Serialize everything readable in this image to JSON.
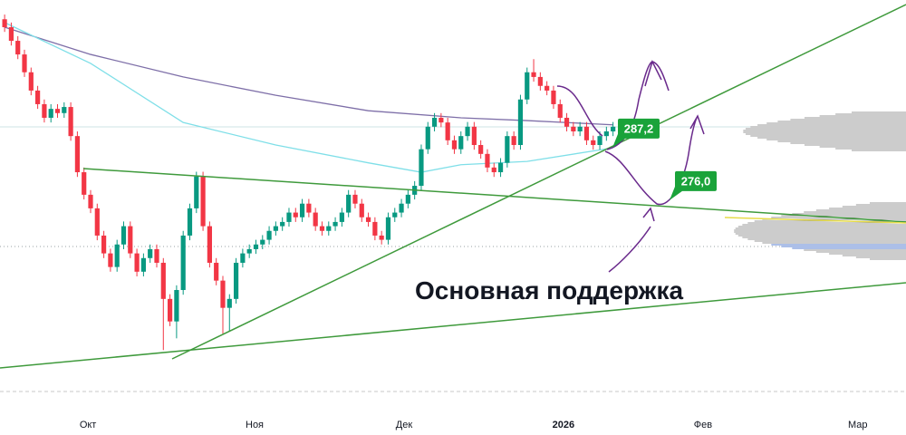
{
  "chart_data": {
    "type": "candlestick",
    "up_color": "#089981",
    "down_color": "#f23645",
    "xlim": [
      -0.7,
      136.3
    ],
    "ylim": [
      221.9,
      314.6
    ],
    "xticks": [
      {
        "value": 12.6,
        "label": "Окт"
      },
      {
        "value": 37.8,
        "label": "Ноя"
      },
      {
        "value": 60.4,
        "label": "Дек"
      },
      {
        "value": 84.5,
        "label": "2026"
      },
      {
        "value": 105.6,
        "label": "Фев"
      },
      {
        "value": 129.0,
        "label": "Мар"
      }
    ],
    "open": [
      310.5,
      308.8,
      305.9,
      303.0,
      299.2,
      295.3,
      292.4,
      289.5,
      291.4,
      290.5,
      291.8,
      285.6,
      277.9,
      273.1,
      270.2,
      264.4,
      260.6,
      257.7,
      262.5,
      266.4,
      260.6,
      256.7,
      259.6,
      261.5,
      258.6,
      250.9,
      246.1,
      252.8,
      264.4,
      270.2,
      277.0,
      266.4,
      258.6,
      254.8,
      249.0,
      250.9,
      258.6,
      260.6,
      261.5,
      262.5,
      263.5,
      265.4,
      266.4,
      267.3,
      269.3,
      268.3,
      271.2,
      269.3,
      266.4,
      265.4,
      266.4,
      267.3,
      269.3,
      273.1,
      271.2,
      268.3,
      267.3,
      264.4,
      263.5,
      268.3,
      269.3,
      271.2,
      273.1,
      275.0,
      282.8,
      287.6,
      289.5,
      288.5,
      284.7,
      282.8,
      285.6,
      287.6,
      283.7,
      281.8,
      278.9,
      277.9,
      279.9,
      285.6,
      283.7,
      293.4,
      299.2,
      298.2,
      296.3,
      295.3,
      292.4,
      289.5,
      287.6,
      286.6,
      287.6,
      284.7,
      283.7,
      285.6,
      286.6
    ],
    "high": [
      311.5,
      309.8,
      306.9,
      304.0,
      300.2,
      296.3,
      293.4,
      292.4,
      292.4,
      292.8,
      292.8,
      286.6,
      278.9,
      274.1,
      271.2,
      265.4,
      261.6,
      263.5,
      267.4,
      267.4,
      261.6,
      260.6,
      262.5,
      262.5,
      259.6,
      251.9,
      253.8,
      265.4,
      271.2,
      278.0,
      278.0,
      267.4,
      259.6,
      255.8,
      251.9,
      259.6,
      261.6,
      262.5,
      263.5,
      264.5,
      266.4,
      267.4,
      268.3,
      270.3,
      270.3,
      272.2,
      272.2,
      270.3,
      267.4,
      267.4,
      268.3,
      270.3,
      274.1,
      274.1,
      272.2,
      269.3,
      268.3,
      265.4,
      269.3,
      270.3,
      272.2,
      274.1,
      276.0,
      283.8,
      288.6,
      290.5,
      290.5,
      289.5,
      285.7,
      286.6,
      288.6,
      288.6,
      284.7,
      282.8,
      279.9,
      280.9,
      286.6,
      286.6,
      294.4,
      300.2,
      302.0,
      299.2,
      297.3,
      296.3,
      293.4,
      290.5,
      288.6,
      288.6,
      288.6,
      285.7,
      286.6,
      287.6,
      288.6
    ],
    "low": [
      307.8,
      304.9,
      302.0,
      298.2,
      294.3,
      291.4,
      288.5,
      288.5,
      289.5,
      289.5,
      284.6,
      276.9,
      272.1,
      269.2,
      263.4,
      259.6,
      256.7,
      256.7,
      261.5,
      259.6,
      255.7,
      255.7,
      258.6,
      257.6,
      240.0,
      245.1,
      242.5,
      251.8,
      263.4,
      269.2,
      265.4,
      257.6,
      253.8,
      243.5,
      244.0,
      249.9,
      257.6,
      259.6,
      260.5,
      261.5,
      262.5,
      264.4,
      265.4,
      266.3,
      267.3,
      267.3,
      268.3,
      265.4,
      264.4,
      264.4,
      265.4,
      266.3,
      268.3,
      270.2,
      267.3,
      266.3,
      263.4,
      262.5,
      262.5,
      267.3,
      268.3,
      270.2,
      272.1,
      274.0,
      281.8,
      286.6,
      287.5,
      283.7,
      281.8,
      281.8,
      284.6,
      282.7,
      280.8,
      277.9,
      276.9,
      276.9,
      278.9,
      282.7,
      282.7,
      292.4,
      297.2,
      295.3,
      294.3,
      291.4,
      288.5,
      286.6,
      285.6,
      285.6,
      283.7,
      282.7,
      282.7,
      284.6,
      285.6
    ],
    "close": [
      308.8,
      305.9,
      303.0,
      299.2,
      295.3,
      292.4,
      289.5,
      291.4,
      290.5,
      291.8,
      285.6,
      277.9,
      273.1,
      270.2,
      264.4,
      260.6,
      257.7,
      262.5,
      266.4,
      260.6,
      256.7,
      259.6,
      261.5,
      258.6,
      250.9,
      246.1,
      252.8,
      264.4,
      270.2,
      277.0,
      266.4,
      258.6,
      254.8,
      249.0,
      250.9,
      258.6,
      260.6,
      261.5,
      262.5,
      263.5,
      265.4,
      266.4,
      267.3,
      269.3,
      268.3,
      271.2,
      269.3,
      266.4,
      265.4,
      266.4,
      267.3,
      269.3,
      273.1,
      271.2,
      268.3,
      267.3,
      264.4,
      263.5,
      268.3,
      269.3,
      271.2,
      273.1,
      275.0,
      282.8,
      287.6,
      289.5,
      288.5,
      284.7,
      282.8,
      285.6,
      287.6,
      283.7,
      281.8,
      278.9,
      277.9,
      279.9,
      285.6,
      283.7,
      293.4,
      299.2,
      298.2,
      296.3,
      295.3,
      292.4,
      289.5,
      287.6,
      286.6,
      287.6,
      284.7,
      283.7,
      285.6,
      286.6,
      287.6
    ],
    "lines": [
      {
        "color": "#7e6fa8",
        "x": [
          0,
          13,
          27,
          41,
          55,
          69,
          79,
          92
        ],
        "values": [
          308.8,
          303.0,
          298.2,
          294.3,
          291.0,
          289.5,
          288.9,
          288.0
        ]
      },
      {
        "color": "#7fdfe8",
        "x": [
          0,
          13,
          27,
          41,
          55,
          63,
          69,
          79,
          92
        ],
        "values": [
          309.8,
          301.1,
          288.5,
          283.7,
          279.9,
          277.9,
          279.5,
          280.2,
          283.1
        ]
      }
    ],
    "price_labels": [
      {
        "value": 287.2,
        "label": "287,2"
      },
      {
        "value": 276.0,
        "label": "276,0"
      }
    ],
    "label_color": "#1aa33a",
    "annotation": "Основная поддержка"
  }
}
